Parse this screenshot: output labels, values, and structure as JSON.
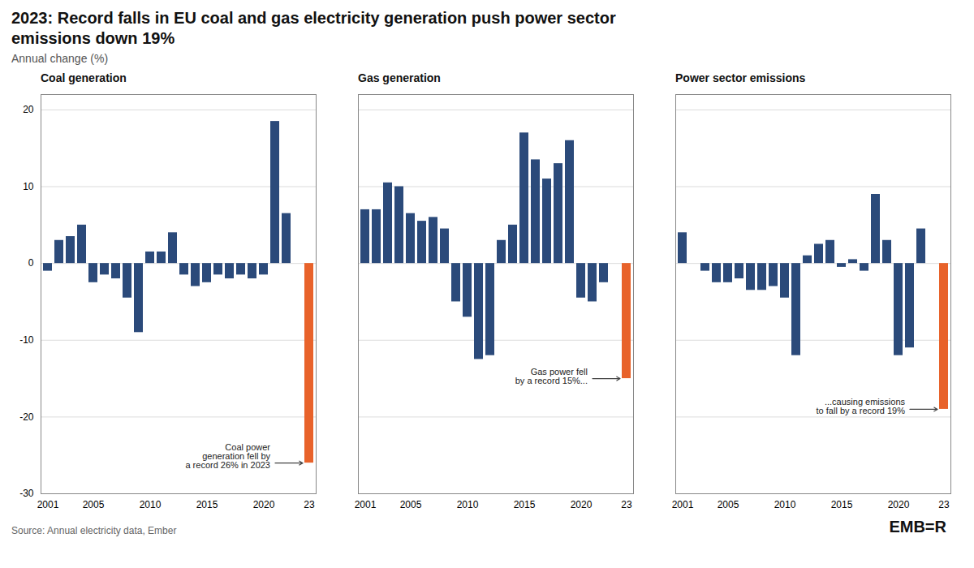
{
  "title": "2023: Record falls in EU coal and gas electricity generation push power sector\nemissions down 19%",
  "subtitle": "Annual change (%)",
  "source": "Source: Annual electricity data, Ember",
  "logo": "EMB=R",
  "chart_data": [
    {
      "type": "bar",
      "title": "Coal generation",
      "categories": [
        "2001",
        null,
        null,
        null,
        "2005",
        null,
        null,
        null,
        null,
        "2010",
        null,
        null,
        null,
        null,
        "2015",
        null,
        null,
        null,
        null,
        "2020",
        null,
        null,
        "23"
      ],
      "values": [
        -1.0,
        3.0,
        3.5,
        5.0,
        -2.5,
        -1.5,
        -2.0,
        -4.5,
        -9.0,
        1.5,
        1.5,
        4.0,
        -1.5,
        -3.0,
        -2.5,
        -1.5,
        -2.0,
        -1.5,
        -2.0,
        -1.5,
        18.5,
        6.5,
        -26.0
      ],
      "colors": [
        "#2b4a7a",
        "#2b4a7a",
        "#2b4a7a",
        "#2b4a7a",
        "#2b4a7a",
        "#2b4a7a",
        "#2b4a7a",
        "#2b4a7a",
        "#2b4a7a",
        "#2b4a7a",
        "#2b4a7a",
        "#2b4a7a",
        "#2b4a7a",
        "#2b4a7a",
        "#2b4a7a",
        "#2b4a7a",
        "#2b4a7a",
        "#2b4a7a",
        "#2b4a7a",
        "#2b4a7a",
        "#2b4a7a",
        "#2b4a7a",
        "#e8622a"
      ],
      "ylim": [
        -30,
        22
      ],
      "yticks": [
        -30,
        -20,
        -10,
        0,
        10,
        20
      ],
      "grid": true,
      "annotations": [
        {
          "text": "Coal power\ngeneration fell by\na record 26% in 2023"
        }
      ]
    },
    {
      "type": "bar",
      "title": "Gas generation",
      "categories": [
        "2001",
        null,
        null,
        null,
        "2005",
        null,
        null,
        null,
        null,
        "2010",
        null,
        null,
        null,
        null,
        "2015",
        null,
        null,
        null,
        null,
        "2020",
        null,
        null,
        "23"
      ],
      "values": [
        7.0,
        7.0,
        10.5,
        10.0,
        6.5,
        5.5,
        6.0,
        4.5,
        -5.0,
        -7.0,
        -12.5,
        -12.0,
        3.0,
        5.0,
        17.0,
        13.5,
        11.0,
        13.0,
        16.0,
        -4.5,
        -5.0,
        -2.5,
        -15.0
      ],
      "colors": [
        "#2b4a7a",
        "#2b4a7a",
        "#2b4a7a",
        "#2b4a7a",
        "#2b4a7a",
        "#2b4a7a",
        "#2b4a7a",
        "#2b4a7a",
        "#2b4a7a",
        "#2b4a7a",
        "#2b4a7a",
        "#2b4a7a",
        "#2b4a7a",
        "#2b4a7a",
        "#2b4a7a",
        "#2b4a7a",
        "#2b4a7a",
        "#2b4a7a",
        "#2b4a7a",
        "#2b4a7a",
        "#2b4a7a",
        "#2b4a7a",
        "#e8622a"
      ],
      "ylim": [
        -30,
        22
      ],
      "yticks": [
        -30,
        -20,
        -10,
        0,
        10,
        20
      ],
      "grid": true,
      "tick_labels": "x",
      "annotations": [
        {
          "text": "Gas power fell\nby a record 15%..."
        }
      ]
    },
    {
      "type": "bar",
      "title": "Power sector emissions",
      "categories": [
        "2001",
        null,
        null,
        null,
        "2005",
        null,
        null,
        null,
        null,
        "2010",
        null,
        null,
        null,
        null,
        "2015",
        null,
        null,
        null,
        null,
        "2020",
        null,
        null,
        "23"
      ],
      "values": [
        4.0,
        0.0,
        -1.0,
        -2.5,
        -2.5,
        -2.0,
        -3.5,
        -3.5,
        -3.0,
        -4.5,
        -12.0,
        1.0,
        2.5,
        3.0,
        -0.5,
        0.5,
        -1.0,
        9.0,
        3.0,
        -12.0,
        -11.0,
        4.5,
        -19.0
      ],
      "colors": [
        "#2b4a7a",
        "#2b4a7a",
        "#2b4a7a",
        "#2b4a7a",
        "#2b4a7a",
        "#2b4a7a",
        "#2b4a7a",
        "#2b4a7a",
        "#2b4a7a",
        "#2b4a7a",
        "#2b4a7a",
        "#2b4a7a",
        "#2b4a7a",
        "#2b4a7a",
        "#2b4a7a",
        "#2b4a7a",
        "#2b4a7a",
        "#2b4a7a",
        "#2b4a7a",
        "#2b4a7a",
        "#2b4a7a",
        "#2b4a7a",
        "#e8622a"
      ],
      "ylim": [
        -30,
        22
      ],
      "yticks": [
        -30,
        -20,
        -10,
        0,
        10,
        20
      ],
      "grid": true,
      "tick_labels": "x",
      "annotations": [
        {
          "text": "...causing emissions\nto fall by a record 19%"
        }
      ]
    }
  ]
}
